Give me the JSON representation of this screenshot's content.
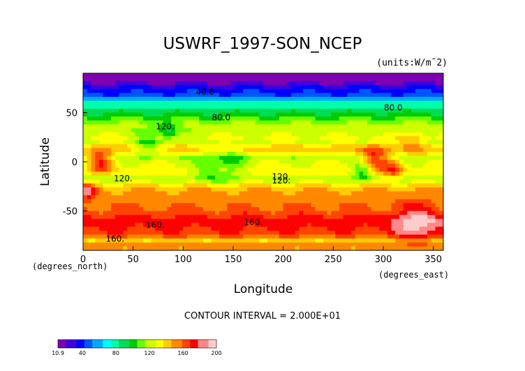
{
  "chart_data": {
    "type": "heatmap",
    "title": "USWRF_1997-SON_NCEP",
    "units": "(units:W/m^2)",
    "units_display": "(units:W/m¯2)",
    "xlabel": "Longitude",
    "ylabel": "Latitude",
    "x_dim_label": "(degrees_east)",
    "y_dim_label": "(degrees_north)",
    "xlim": [
      0,
      360
    ],
    "ylim": [
      -90,
      90
    ],
    "x_ticks": [
      0,
      50,
      100,
      150,
      200,
      250,
      300,
      350
    ],
    "y_ticks": [
      -50,
      0,
      50
    ],
    "contour_interval_text": "CONTOUR INTERVAL = 2.000E+01",
    "contour_interval": 20,
    "contour_labels": [
      {
        "text": "40.0",
        "lon": 122,
        "lat": 68
      },
      {
        "text": "80.0",
        "lon": 310,
        "lat": 52
      },
      {
        "text": "80.0",
        "lon": 138,
        "lat": 42
      },
      {
        "text": "120.",
        "lon": 82,
        "lat": 33
      },
      {
        "text": "120.",
        "lon": 40,
        "lat": -20
      },
      {
        "text": "120.",
        "lon": 198,
        "lat": -18
      },
      {
        "text": "120.",
        "lon": 198,
        "lat": -22
      },
      {
        "text": "160.",
        "lon": 72,
        "lat": -67
      },
      {
        "text": "160.",
        "lon": 170,
        "lat": -64
      },
      {
        "text": "160.",
        "lon": 32,
        "lat": -81
      }
    ],
    "colorbar": {
      "min": 10.9,
      "max": 200,
      "tick_labels": [
        "10.9",
        "40",
        "80",
        "120",
        "160",
        "200"
      ],
      "tick_values": [
        10.9,
        40,
        80,
        120,
        160,
        200
      ]
    },
    "zonal_profile": {
      "lat": [
        90,
        85,
        80,
        75,
        70,
        65,
        60,
        55,
        50,
        45,
        40,
        35,
        30,
        25,
        20,
        15,
        10,
        5,
        0,
        -5,
        -10,
        -15,
        -20,
        -25,
        -30,
        -35,
        -40,
        -45,
        -50,
        -55,
        -60,
        -65,
        -70,
        -75,
        -80,
        -85,
        -90
      ],
      "value": [
        12,
        12,
        22,
        35,
        40,
        55,
        75,
        82,
        95,
        105,
        115,
        118,
        120,
        130,
        125,
        140,
        142,
        120,
        125,
        130,
        135,
        118,
        125,
        142,
        150,
        150,
        155,
        158,
        160,
        168,
        175,
        170,
        168,
        160,
        140,
        150,
        150
      ]
    },
    "regional_anomalies": [
      {
        "lon": 18,
        "lat": 0,
        "radius": 12,
        "value": 40
      },
      {
        "lon": 5,
        "lat": -30,
        "radius": 8,
        "value": 35
      },
      {
        "lon": 290,
        "lat": 2,
        "radius": 14,
        "value": 40
      },
      {
        "lon": 310,
        "lat": -8,
        "radius": 10,
        "value": 35
      },
      {
        "lon": 280,
        "lat": -10,
        "radius": 10,
        "value": -35
      },
      {
        "lon": 65,
        "lat": 15,
        "radius": 12,
        "value": -25
      },
      {
        "lon": 85,
        "lat": 30,
        "radius": 10,
        "value": -30
      },
      {
        "lon": 125,
        "lat": -5,
        "radius": 14,
        "value": -25
      },
      {
        "lon": 148,
        "lat": 0,
        "radius": 14,
        "value": -22
      },
      {
        "lon": 335,
        "lat": -65,
        "radius": 22,
        "value": 25
      },
      {
        "lon": 330,
        "lat": 20,
        "radius": 12,
        "value": 20
      }
    ],
    "palette": [
      "#7f00b0",
      "#3f00dd",
      "#0000ff",
      "#0055ff",
      "#00aaff",
      "#00ffff",
      "#00ffaa",
      "#00dd55",
      "#00cc00",
      "#66ff00",
      "#ccff00",
      "#ffff00",
      "#ffcc00",
      "#ff8800",
      "#ff4400",
      "#ff0000",
      "#ff8888",
      "#ffcccc"
    ],
    "grid": false
  }
}
